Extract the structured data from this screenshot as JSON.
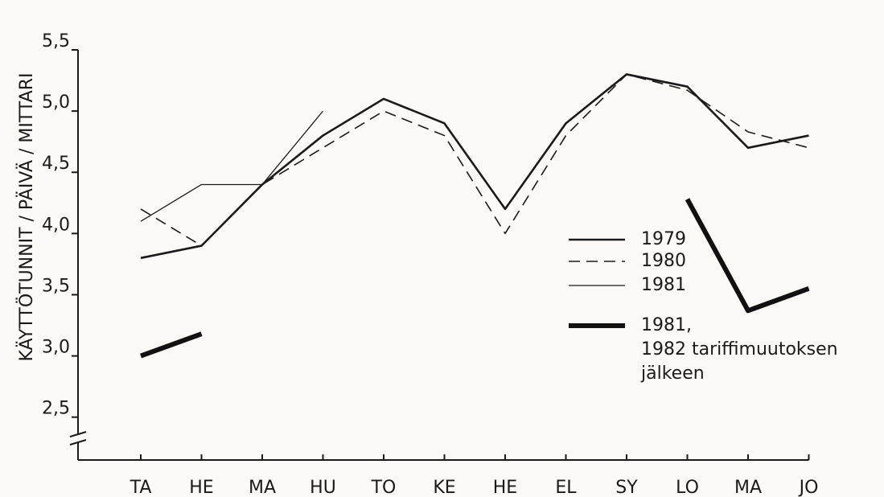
{
  "chart_data": {
    "type": "line",
    "y_label": "KÄYTTÖTUNNIT / PÄIVÄ / MITTARI",
    "categories": [
      "TA",
      "HE",
      "MA",
      "HU",
      "TO",
      "KE",
      "HE",
      "EL",
      "SY",
      "LO",
      "MA",
      "JO"
    ],
    "series": [
      {
        "name": "1979",
        "color": "#1a1a1a",
        "line_style": "solid",
        "line_width": 2.6,
        "values": [
          3.8,
          3.9,
          4.4,
          4.8,
          5.1,
          4.9,
          4.2,
          4.9,
          5.3,
          5.2,
          4.7,
          4.8
        ]
      },
      {
        "name": "1980",
        "color": "#1a1a1a",
        "line_style": "dashed",
        "line_width": 1.6,
        "values": [
          4.2,
          3.9,
          4.4,
          4.7,
          5.0,
          4.8,
          4.0,
          4.8,
          5.3,
          5.17,
          4.83,
          4.7
        ]
      },
      {
        "name": "1981",
        "color": "#1a1a1a",
        "line_style": "solid",
        "line_width": 1.3,
        "values": [
          4.1,
          4.4,
          4.4,
          5.0,
          null,
          null,
          null,
          null,
          null,
          null,
          null,
          null
        ]
      },
      {
        "name": "1981,\n1982 tariffimuutoksen\njälkeen",
        "color": "#111111",
        "line_style": "solid",
        "line_width": 6,
        "values": [
          3.0,
          3.18,
          null,
          null,
          null,
          null,
          null,
          null,
          null,
          4.28,
          3.37,
          3.55
        ]
      }
    ],
    "ylim": [
      2.15,
      5.5
    ],
    "yticks": [
      {
        "value": 2.5,
        "label": "2,5"
      },
      {
        "value": 3.0,
        "label": "3,0"
      },
      {
        "value": 3.5,
        "label": "3,5"
      },
      {
        "value": 4.0,
        "label": "4,0"
      },
      {
        "value": 4.5,
        "label": "4,5"
      },
      {
        "value": 5.0,
        "label": "5,0"
      },
      {
        "value": 5.5,
        "label": "5,5"
      }
    ],
    "axis_break": true
  }
}
